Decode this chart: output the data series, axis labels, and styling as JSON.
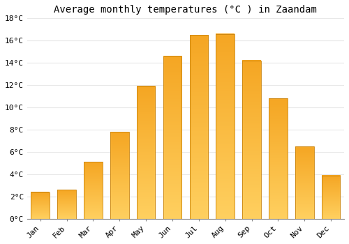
{
  "title": "Average monthly temperatures (°C ) in Zaandam",
  "months": [
    "Jan",
    "Feb",
    "Mar",
    "Apr",
    "May",
    "Jun",
    "Jul",
    "Aug",
    "Sep",
    "Oct",
    "Nov",
    "Dec"
  ],
  "temperatures": [
    2.4,
    2.6,
    5.1,
    7.8,
    11.9,
    14.6,
    16.5,
    16.6,
    14.2,
    10.8,
    6.5,
    3.9
  ],
  "bar_color_top": "#F5A623",
  "bar_color_bottom": "#FFD060",
  "bar_border_color": "#C8820A",
  "ylim": [
    0,
    18
  ],
  "yticks": [
    0,
    2,
    4,
    6,
    8,
    10,
    12,
    14,
    16,
    18
  ],
  "ytick_labels": [
    "0°C",
    "2°C",
    "4°C",
    "6°C",
    "8°C",
    "10°C",
    "12°C",
    "14°C",
    "16°C",
    "18°C"
  ],
  "background_color": "#FFFFFF",
  "grid_color": "#E8E8E8",
  "title_fontsize": 10,
  "tick_fontsize": 8,
  "bar_width": 0.7
}
